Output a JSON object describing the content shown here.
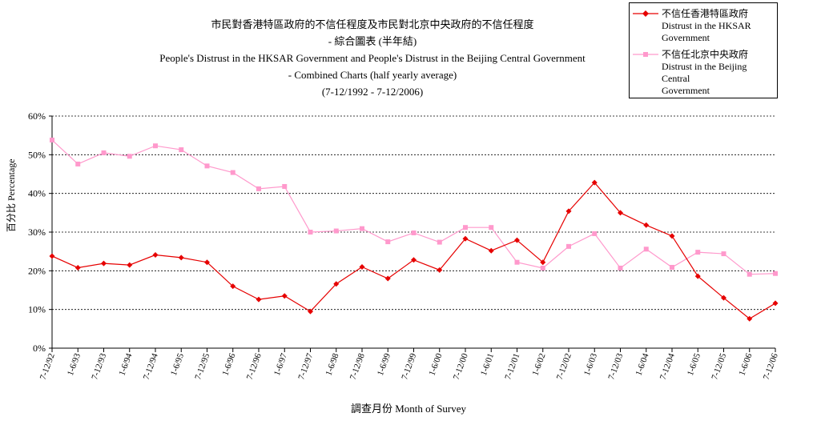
{
  "title_lines": [
    "市民對香港特區政府的不信任程度及市民對北京中央政府的不信任程度",
    "- 綜合圖表 (半年結)",
    "People's Distrust in the HKSAR Government and People's Distrust in the Beijing Central Government",
    "- Combined Charts (half yearly average)",
    "(7-12/1992 - 7-12/2006)"
  ],
  "chart_data": {
    "type": "line",
    "ylabel": "百分比 Percentage",
    "xlabel": "調查月份 Month of Survey",
    "ylim": [
      0,
      60
    ],
    "yticks": [
      "0%",
      "10%",
      "20%",
      "30%",
      "40%",
      "50%",
      "60%"
    ],
    "grid": "horizontal dashed",
    "legend_position": "top-right",
    "categories": [
      "7-12/92",
      "1-6/93",
      "7-12/93",
      "1-6/94",
      "7-12/94",
      "1-6/95",
      "7-12/95",
      "1-6/96",
      "7-12/96",
      "1-6/97",
      "7-12/97",
      "1-6/98",
      "7-12/98",
      "1-6/99",
      "7-12/99",
      "1-6/00",
      "7-12/00",
      "1-6/01",
      "7-12/01",
      "1-6/02",
      "7-12/02",
      "1-6/03",
      "7-12/03",
      "1-6/04",
      "7-12/04",
      "1-6/05",
      "7-12/05",
      "1-6/06",
      "7-12/06"
    ],
    "series": [
      {
        "name": "不信任香港特區政府 Distrust in the HKSAR Government",
        "name_lines": [
          "不信任香港特區政府",
          "Distrust in the HKSAR",
          "Government"
        ],
        "color": "#e60000",
        "marker": "diamond",
        "values": [
          23.8,
          20.8,
          21.9,
          21.5,
          24.1,
          23.4,
          22.2,
          16.0,
          12.6,
          13.5,
          9.5,
          16.6,
          21.0,
          18.0,
          22.8,
          20.2,
          28.3,
          25.2,
          27.9,
          22.2,
          35.4,
          42.8,
          35.0,
          31.8,
          29.0,
          18.6,
          13.0,
          7.6,
          11.6
        ]
      },
      {
        "name": "不信任北京中央政府 Distrust in the Beijing Central Government",
        "name_lines": [
          "不信任北京中央政府",
          "Distrust in the Beijing Central",
          "Government"
        ],
        "color": "#ff99cc",
        "marker": "square",
        "values": [
          53.8,
          47.6,
          50.5,
          49.6,
          52.3,
          51.3,
          47.1,
          45.4,
          41.2,
          41.8,
          30.0,
          30.3,
          30.9,
          27.5,
          29.8,
          27.4,
          31.2,
          31.2,
          22.2,
          20.7,
          26.3,
          29.6,
          20.7,
          25.6,
          20.9,
          24.8,
          24.4,
          19.1,
          19.3
        ]
      }
    ]
  }
}
